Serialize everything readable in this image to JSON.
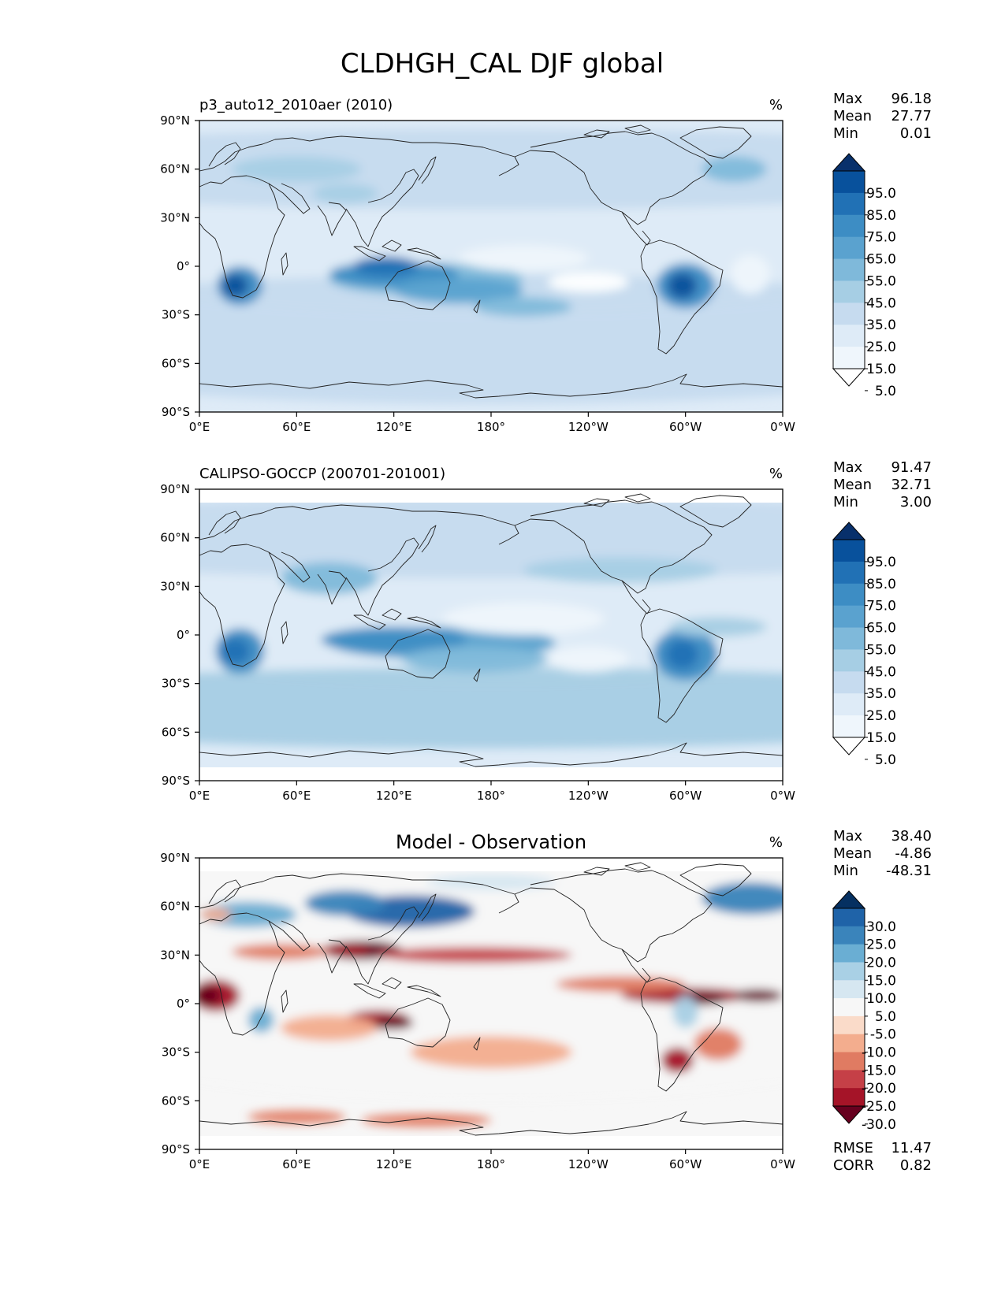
{
  "figure": {
    "title": "CLDHGH_CAL DJF global"
  },
  "panels": [
    {
      "id": "test",
      "title_left": "p3_auto12_2010aer (2010)",
      "title_center": "",
      "units": "%",
      "stats": [
        {
          "label": "Max",
          "value": "96.18"
        },
        {
          "label": "Mean",
          "value": "27.77"
        },
        {
          "label": "Min",
          "value": "0.01"
        }
      ],
      "colorbar": {
        "labels": [
          "95.0",
          "85.0",
          "75.0",
          "65.0",
          "55.0",
          "45.0",
          "35.0",
          "25.0",
          "15.0",
          "5.0"
        ],
        "colors": [
          "#08306b",
          "#08519c",
          "#2171b5",
          "#3d8dc4",
          "#5aa2cf",
          "#7fb9da",
          "#a6cee4",
          "#c6dbef",
          "#deebf7",
          "#eff6fc",
          "#ffffff"
        ]
      }
    },
    {
      "id": "ref",
      "title_left": "CALIPSO-GOCCP (200701-201001)",
      "title_center": "",
      "units": "%",
      "stats": [
        {
          "label": "Max",
          "value": "91.47"
        },
        {
          "label": "Mean",
          "value": "32.71"
        },
        {
          "label": "Min",
          "value": "3.00"
        }
      ],
      "colorbar": {
        "labels": [
          "95.0",
          "85.0",
          "75.0",
          "65.0",
          "55.0",
          "45.0",
          "35.0",
          "25.0",
          "15.0",
          "5.0"
        ],
        "colors": [
          "#08306b",
          "#08519c",
          "#2171b5",
          "#3d8dc4",
          "#5aa2cf",
          "#7fb9da",
          "#a6cee4",
          "#c6dbef",
          "#deebf7",
          "#eff6fc",
          "#ffffff"
        ]
      }
    },
    {
      "id": "diff",
      "title_left": "",
      "title_center": "Model - Observation",
      "units": "%",
      "stats": [
        {
          "label": "Max",
          "value": "38.40"
        },
        {
          "label": "Mean",
          "value": "-4.86"
        },
        {
          "label": "Min",
          "value": "-48.31"
        }
      ],
      "extra_stats": [
        {
          "label": "RMSE",
          "value": "11.47"
        },
        {
          "label": "CORR",
          "value": "0.82"
        }
      ],
      "colorbar": {
        "labels": [
          "30.0",
          "25.0",
          "20.0",
          "15.0",
          "10.0",
          "5.0",
          "-5.0",
          "-10.0",
          "-15.0",
          "-20.0",
          "-25.0",
          "-30.0"
        ],
        "colors": [
          "#053061",
          "#1f63a8",
          "#3a84bb",
          "#6aaed3",
          "#a9d0e5",
          "#d6e7f1",
          "#f7f7f7",
          "#fadbc9",
          "#f3ad8e",
          "#e07b62",
          "#c54047",
          "#a51428",
          "#67001f"
        ]
      }
    }
  ],
  "axes": {
    "x_ticks": [
      "0°E",
      "60°E",
      "120°E",
      "180°",
      "120°W",
      "60°W",
      "0°W"
    ],
    "y_ticks": [
      "90°N",
      "60°N",
      "30°N",
      "0°",
      "30°S",
      "60°S",
      "90°S"
    ]
  }
}
